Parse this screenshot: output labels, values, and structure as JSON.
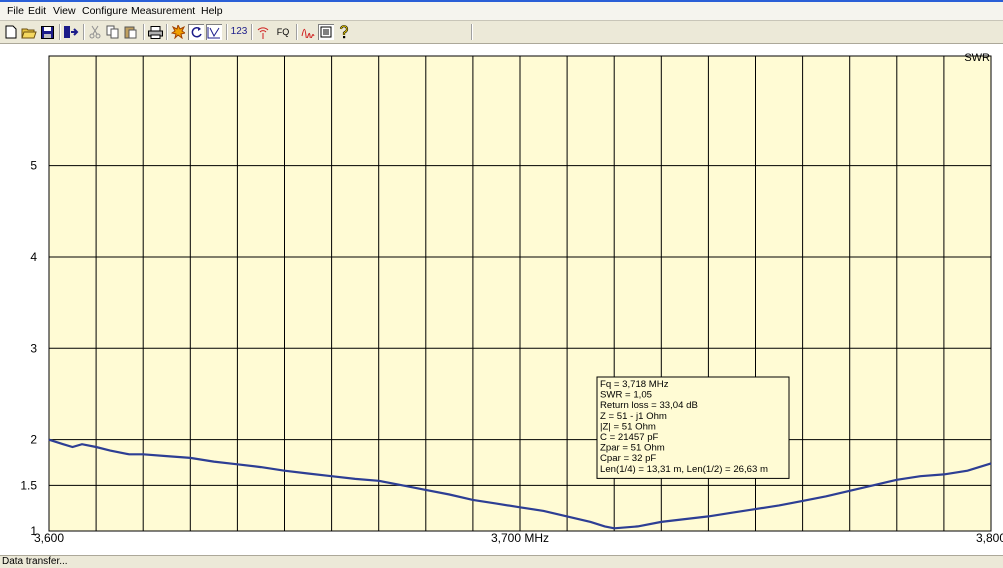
{
  "menu": {
    "items": [
      "File",
      "Edit",
      "View",
      "Configure",
      "Measurement",
      "Help"
    ]
  },
  "toolbar": {
    "freq_label": "123",
    "fq_label": "FQ",
    "icons": [
      "new-file-icon",
      "open-folder-icon",
      "save-icon",
      "export-icon",
      "cut-icon",
      "copy-icon",
      "paste-icon",
      "print-icon",
      "scan-icon",
      "repeat-scan-icon",
      "swr-graph-icon",
      "frequency-icon",
      "antenna-icon",
      "fq-icon",
      "curve-icon",
      "memory-icon",
      "help-icon"
    ]
  },
  "chart_data": {
    "type": "line",
    "series_label": "SWR",
    "xlabel": "MHz",
    "x_tick_labels": [
      "3,600",
      "3,700 MHz",
      "3,800"
    ],
    "xlim": [
      3.6,
      3.8
    ],
    "ylim": [
      1,
      6
    ],
    "y_tick_labels": [
      "1",
      "1.5",
      "2",
      "3",
      "4",
      "5"
    ],
    "y_ticks": [
      1,
      1.5,
      2,
      3,
      4,
      5
    ],
    "grid": true,
    "vertical_grid_divisions": 20,
    "background": "#fffbd4",
    "line_color": "#2d3e94",
    "points": [
      [
        3.6,
        2.0
      ],
      [
        3.603,
        1.95
      ],
      [
        3.605,
        1.92
      ],
      [
        3.607,
        1.95
      ],
      [
        3.61,
        1.92
      ],
      [
        3.613,
        1.88
      ],
      [
        3.617,
        1.84
      ],
      [
        3.62,
        1.84
      ],
      [
        3.625,
        1.82
      ],
      [
        3.63,
        1.8
      ],
      [
        3.635,
        1.76
      ],
      [
        3.64,
        1.73
      ],
      [
        3.645,
        1.7
      ],
      [
        3.65,
        1.66
      ],
      [
        3.655,
        1.63
      ],
      [
        3.66,
        1.6
      ],
      [
        3.665,
        1.57
      ],
      [
        3.67,
        1.55
      ],
      [
        3.675,
        1.5
      ],
      [
        3.68,
        1.45
      ],
      [
        3.685,
        1.4
      ],
      [
        3.69,
        1.34
      ],
      [
        3.695,
        1.3
      ],
      [
        3.7,
        1.26
      ],
      [
        3.705,
        1.22
      ],
      [
        3.71,
        1.16
      ],
      [
        3.715,
        1.1
      ],
      [
        3.718,
        1.05
      ],
      [
        3.72,
        1.03
      ],
      [
        3.725,
        1.05
      ],
      [
        3.73,
        1.1
      ],
      [
        3.735,
        1.13
      ],
      [
        3.74,
        1.16
      ],
      [
        3.745,
        1.2
      ],
      [
        3.75,
        1.24
      ],
      [
        3.755,
        1.28
      ],
      [
        3.76,
        1.33
      ],
      [
        3.765,
        1.38
      ],
      [
        3.77,
        1.44
      ],
      [
        3.775,
        1.5
      ],
      [
        3.78,
        1.56
      ],
      [
        3.785,
        1.6
      ],
      [
        3.79,
        1.62
      ],
      [
        3.795,
        1.66
      ],
      [
        3.8,
        1.74
      ]
    ]
  },
  "marker_box": {
    "lines": [
      "Fq = 3,718 MHz",
      "SWR = 1,05",
      "Return loss = 33,04 dB",
      "Z = 51 - j1 Ohm",
      "|Z| = 51 Ohm",
      "C = 21457 pF",
      "Zpar = 51 Ohm",
      "Cpar = 32 pF",
      "Len(1/4) = 13,31 m, Len(1/2) = 26,63 m"
    ]
  },
  "status": {
    "text": "Data transfer..."
  }
}
